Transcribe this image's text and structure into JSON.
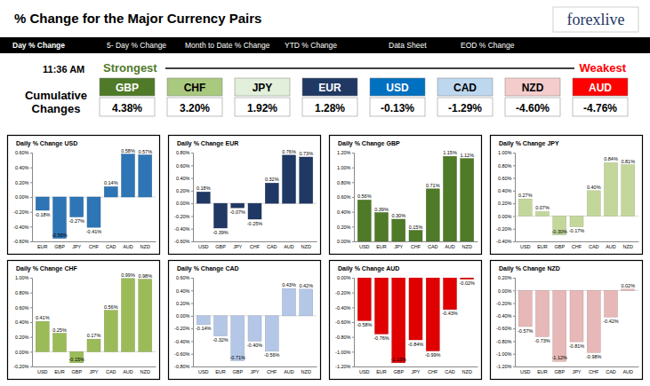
{
  "header": {
    "title": "% Change for the Major Currency Pairs",
    "logo": "forexlive",
    "nav": [
      "Day % Change",
      "5- Day % Change",
      "Month to Date % Change",
      "YTD % Change",
      "Data Sheet",
      "EOD % Change"
    ]
  },
  "summary": {
    "time": "11:36 AM",
    "strongest": "Strongest",
    "weakest": "Weakest",
    "label": "Cumulative Changes",
    "currencies": [
      {
        "name": "GBP",
        "value": "4.38%",
        "color": "#4f7a28"
      },
      {
        "name": "CHF",
        "value": "3.20%",
        "color": "#a9c97e"
      },
      {
        "name": "JPY",
        "value": "1.92%",
        "color": "#e2efda"
      },
      {
        "name": "EUR",
        "value": "1.28%",
        "color": "#1f3864"
      },
      {
        "name": "USD",
        "value": "-0.13%",
        "color": "#0070c0"
      },
      {
        "name": "CAD",
        "value": "-1.29%",
        "color": "#bdd7ee"
      },
      {
        "name": "NZD",
        "value": "-4.60%",
        "color": "#f4cccc"
      },
      {
        "name": "AUD",
        "value": "-4.76%",
        "color": "#ff0000"
      }
    ]
  },
  "chart_data": [
    {
      "type": "bar",
      "title": "Daily % Change USD",
      "categories": [
        "EUR",
        "GBP",
        "JPY",
        "CHF",
        "CAD",
        "AUD",
        "NZD"
      ],
      "values": [
        -0.18,
        -0.56,
        -0.27,
        -0.41,
        0.14,
        0.58,
        0.57
      ],
      "value_labels": [
        "-0.18%",
        "-0.56%",
        "-0.27%",
        "-0.41%",
        "0.14%",
        "0.58%",
        "0.57%"
      ],
      "color": "#2e75b6",
      "ylim": [
        -0.6,
        0.6
      ],
      "yticks": [
        {
          "value": -0.6,
          "label": "-0.60%"
        },
        {
          "value": -0.4,
          "label": "-0.40%"
        },
        {
          "value": -0.2,
          "label": "-0.20%"
        },
        {
          "value": 0,
          "label": "0.00%"
        },
        {
          "value": 0.2,
          "label": "0.20%"
        },
        {
          "value": 0.4,
          "label": "0.40%"
        },
        {
          "value": 0.6,
          "label": "0.60%"
        }
      ],
      "data_labels": true
    },
    {
      "type": "bar",
      "title": "Daily % Change EUR",
      "categories": [
        "USD",
        "GBP",
        "JPY",
        "CHF",
        "CAD",
        "AUD",
        "NZD"
      ],
      "values": [
        0.18,
        -0.39,
        -0.07,
        -0.25,
        0.32,
        0.76,
        0.73
      ],
      "value_labels": [
        "0.18%",
        "-0.39%",
        "-0.07%",
        "-0.25%",
        "0.32%",
        "0.76%",
        "0.73%"
      ],
      "color": "#1f3864",
      "ylim": [
        -0.6,
        0.8
      ],
      "yticks": [
        {
          "value": -0.6,
          "label": "-0.60%"
        },
        {
          "value": -0.4,
          "label": "-0.40%"
        },
        {
          "value": -0.2,
          "label": "-0.20%"
        },
        {
          "value": 0,
          "label": "0.00%"
        },
        {
          "value": 0.2,
          "label": "0.20%"
        },
        {
          "value": 0.4,
          "label": "0.40%"
        },
        {
          "value": 0.6,
          "label": "0.60%"
        },
        {
          "value": 0.8,
          "label": "0.80%"
        }
      ],
      "data_labels": true
    },
    {
      "type": "bar",
      "title": "Daily % Change GBP",
      "categories": [
        "USD",
        "EUR",
        "JPY",
        "CHF",
        "CAD",
        "AUD",
        "NZD"
      ],
      "values": [
        0.56,
        0.39,
        0.3,
        0.15,
        0.71,
        1.15,
        1.12
      ],
      "value_labels": [
        "0.56%",
        "0.39%",
        "0.30%",
        "0.15%",
        "0.71%",
        "1.15%",
        "1.12%"
      ],
      "color": "#4f7a28",
      "ylim": [
        0,
        1.2
      ],
      "yticks": [
        {
          "value": 0,
          "label": "0.00%"
        },
        {
          "value": 0.2,
          "label": "0.20%"
        },
        {
          "value": 0.4,
          "label": "0.40%"
        },
        {
          "value": 0.6,
          "label": "0.60%"
        },
        {
          "value": 0.8,
          "label": "0.80%"
        },
        {
          "value": 1.0,
          "label": "1.00%"
        },
        {
          "value": 1.2,
          "label": "1.20%"
        }
      ],
      "data_labels": true
    },
    {
      "type": "bar",
      "title": "Daily % Change JPY",
      "categories": [
        "USD",
        "EUR",
        "GBP",
        "CHF",
        "CAD",
        "AUD",
        "NZD"
      ],
      "values": [
        0.27,
        0.07,
        -0.3,
        -0.17,
        0.4,
        0.84,
        0.81
      ],
      "value_labels": [
        "0.27%",
        "0.07%",
        "-0.30%",
        "-0.17%",
        "0.40%",
        "0.84%",
        "0.81%"
      ],
      "color": "#c4d79b",
      "ylim": [
        -0.4,
        1.0
      ],
      "yticks": [
        {
          "value": -0.4,
          "label": "-0.40%"
        },
        {
          "value": -0.2,
          "label": "-0.20%"
        },
        {
          "value": 0,
          "label": "0.00%"
        },
        {
          "value": 0.2,
          "label": "0.20%"
        },
        {
          "value": 0.4,
          "label": "0.40%"
        },
        {
          "value": 0.6,
          "label": "0.60%"
        },
        {
          "value": 0.8,
          "label": "0.80%"
        },
        {
          "value": 1.0,
          "label": "1.00%"
        }
      ],
      "data_labels": true
    },
    {
      "type": "bar",
      "title": "Daily % Change CHF",
      "categories": [
        "USD",
        "EUR",
        "GBP",
        "JPY",
        "CAD",
        "AUD",
        "NZD"
      ],
      "values": [
        0.41,
        0.25,
        -0.15,
        0.17,
        0.56,
        0.99,
        0.98
      ],
      "value_labels": [
        "0.41%",
        "0.25%",
        "-0.15%",
        "0.17%",
        "0.56%",
        "0.99%",
        "0.98%"
      ],
      "color": "#9bbb59",
      "ylim": [
        -0.2,
        1.0
      ],
      "yticks": [
        {
          "value": -0.2,
          "label": "-0.20%"
        },
        {
          "value": 0,
          "label": "0.00%"
        },
        {
          "value": 0.2,
          "label": "0.20%"
        },
        {
          "value": 0.4,
          "label": "0.40%"
        },
        {
          "value": 0.6,
          "label": "0.60%"
        },
        {
          "value": 0.8,
          "label": "0.80%"
        },
        {
          "value": 1.0,
          "label": "1.00%"
        }
      ],
      "data_labels": true
    },
    {
      "type": "bar",
      "title": "Daily % Change CAD",
      "categories": [
        "USD",
        "EUR",
        "GBP",
        "JPY",
        "CHF",
        "AUD",
        "NZD"
      ],
      "values": [
        -0.14,
        -0.32,
        -0.71,
        -0.4,
        -0.56,
        0.43,
        0.42
      ],
      "value_labels": [
        "-0.14%",
        "-0.32%",
        "-0.71%",
        "-0.40%",
        "-0.56%",
        "0.43%",
        "0.42%"
      ],
      "color": "#b4c7e7",
      "ylim": [
        -0.8,
        0.6
      ],
      "yticks": [
        {
          "value": -0.8,
          "label": "-0.80%"
        },
        {
          "value": -0.6,
          "label": "-0.60%"
        },
        {
          "value": -0.4,
          "label": "-0.40%"
        },
        {
          "value": -0.2,
          "label": "-0.20%"
        },
        {
          "value": 0,
          "label": "0.00%"
        },
        {
          "value": 0.2,
          "label": "0.20%"
        },
        {
          "value": 0.4,
          "label": "0.40%"
        },
        {
          "value": 0.6,
          "label": "0.60%"
        }
      ],
      "data_labels": true
    },
    {
      "type": "bar",
      "title": "Daily % Change AUD",
      "categories": [
        "USD",
        "EUR",
        "GBP",
        "JPY",
        "CHF",
        "CAD",
        "NZD"
      ],
      "values": [
        -0.58,
        -0.76,
        -1.15,
        -0.84,
        -0.99,
        -0.43,
        -0.02
      ],
      "value_labels": [
        "-0.58%",
        "-0.76%",
        "-1.15%",
        "-0.84%",
        "-0.99%",
        "-0.43%",
        "-0.02%"
      ],
      "color": "#e00000",
      "ylim": [
        -1.2,
        0
      ],
      "yticks": [
        {
          "value": -1.2,
          "label": "-1.20%"
        },
        {
          "value": -1.0,
          "label": "-1.00%"
        },
        {
          "value": -0.8,
          "label": "-0.80%"
        },
        {
          "value": -0.6,
          "label": "-0.60%"
        },
        {
          "value": -0.4,
          "label": "-0.40%"
        },
        {
          "value": -0.2,
          "label": "-0.20%"
        },
        {
          "value": 0,
          "label": "0.00%"
        }
      ],
      "data_labels": true
    },
    {
      "type": "bar",
      "title": "Daily % Change NZD",
      "categories": [
        "USD",
        "EUR",
        "GBP",
        "JPY",
        "CHF",
        "CAD",
        "AUD"
      ],
      "values": [
        -0.57,
        -0.73,
        -1.12,
        -0.81,
        -0.98,
        -0.42,
        0.02
      ],
      "value_labels": [
        "-0.57%",
        "-0.73%",
        "-1.12%",
        "-0.81%",
        "-0.98%",
        "-0.42%",
        "0.02%"
      ],
      "color": "#e6b8b7",
      "ylim": [
        -1.2,
        0.2
      ],
      "yticks": [
        {
          "value": -1.2,
          "label": "-1.20%"
        },
        {
          "value": -1.0,
          "label": "-1.00%"
        },
        {
          "value": -0.8,
          "label": "-0.80%"
        },
        {
          "value": -0.6,
          "label": "-0.60%"
        },
        {
          "value": -0.4,
          "label": "-0.40%"
        },
        {
          "value": -0.2,
          "label": "-0.20%"
        },
        {
          "value": 0,
          "label": "0.00%"
        },
        {
          "value": 0.2,
          "label": "0.20%"
        }
      ],
      "data_labels": true
    }
  ]
}
